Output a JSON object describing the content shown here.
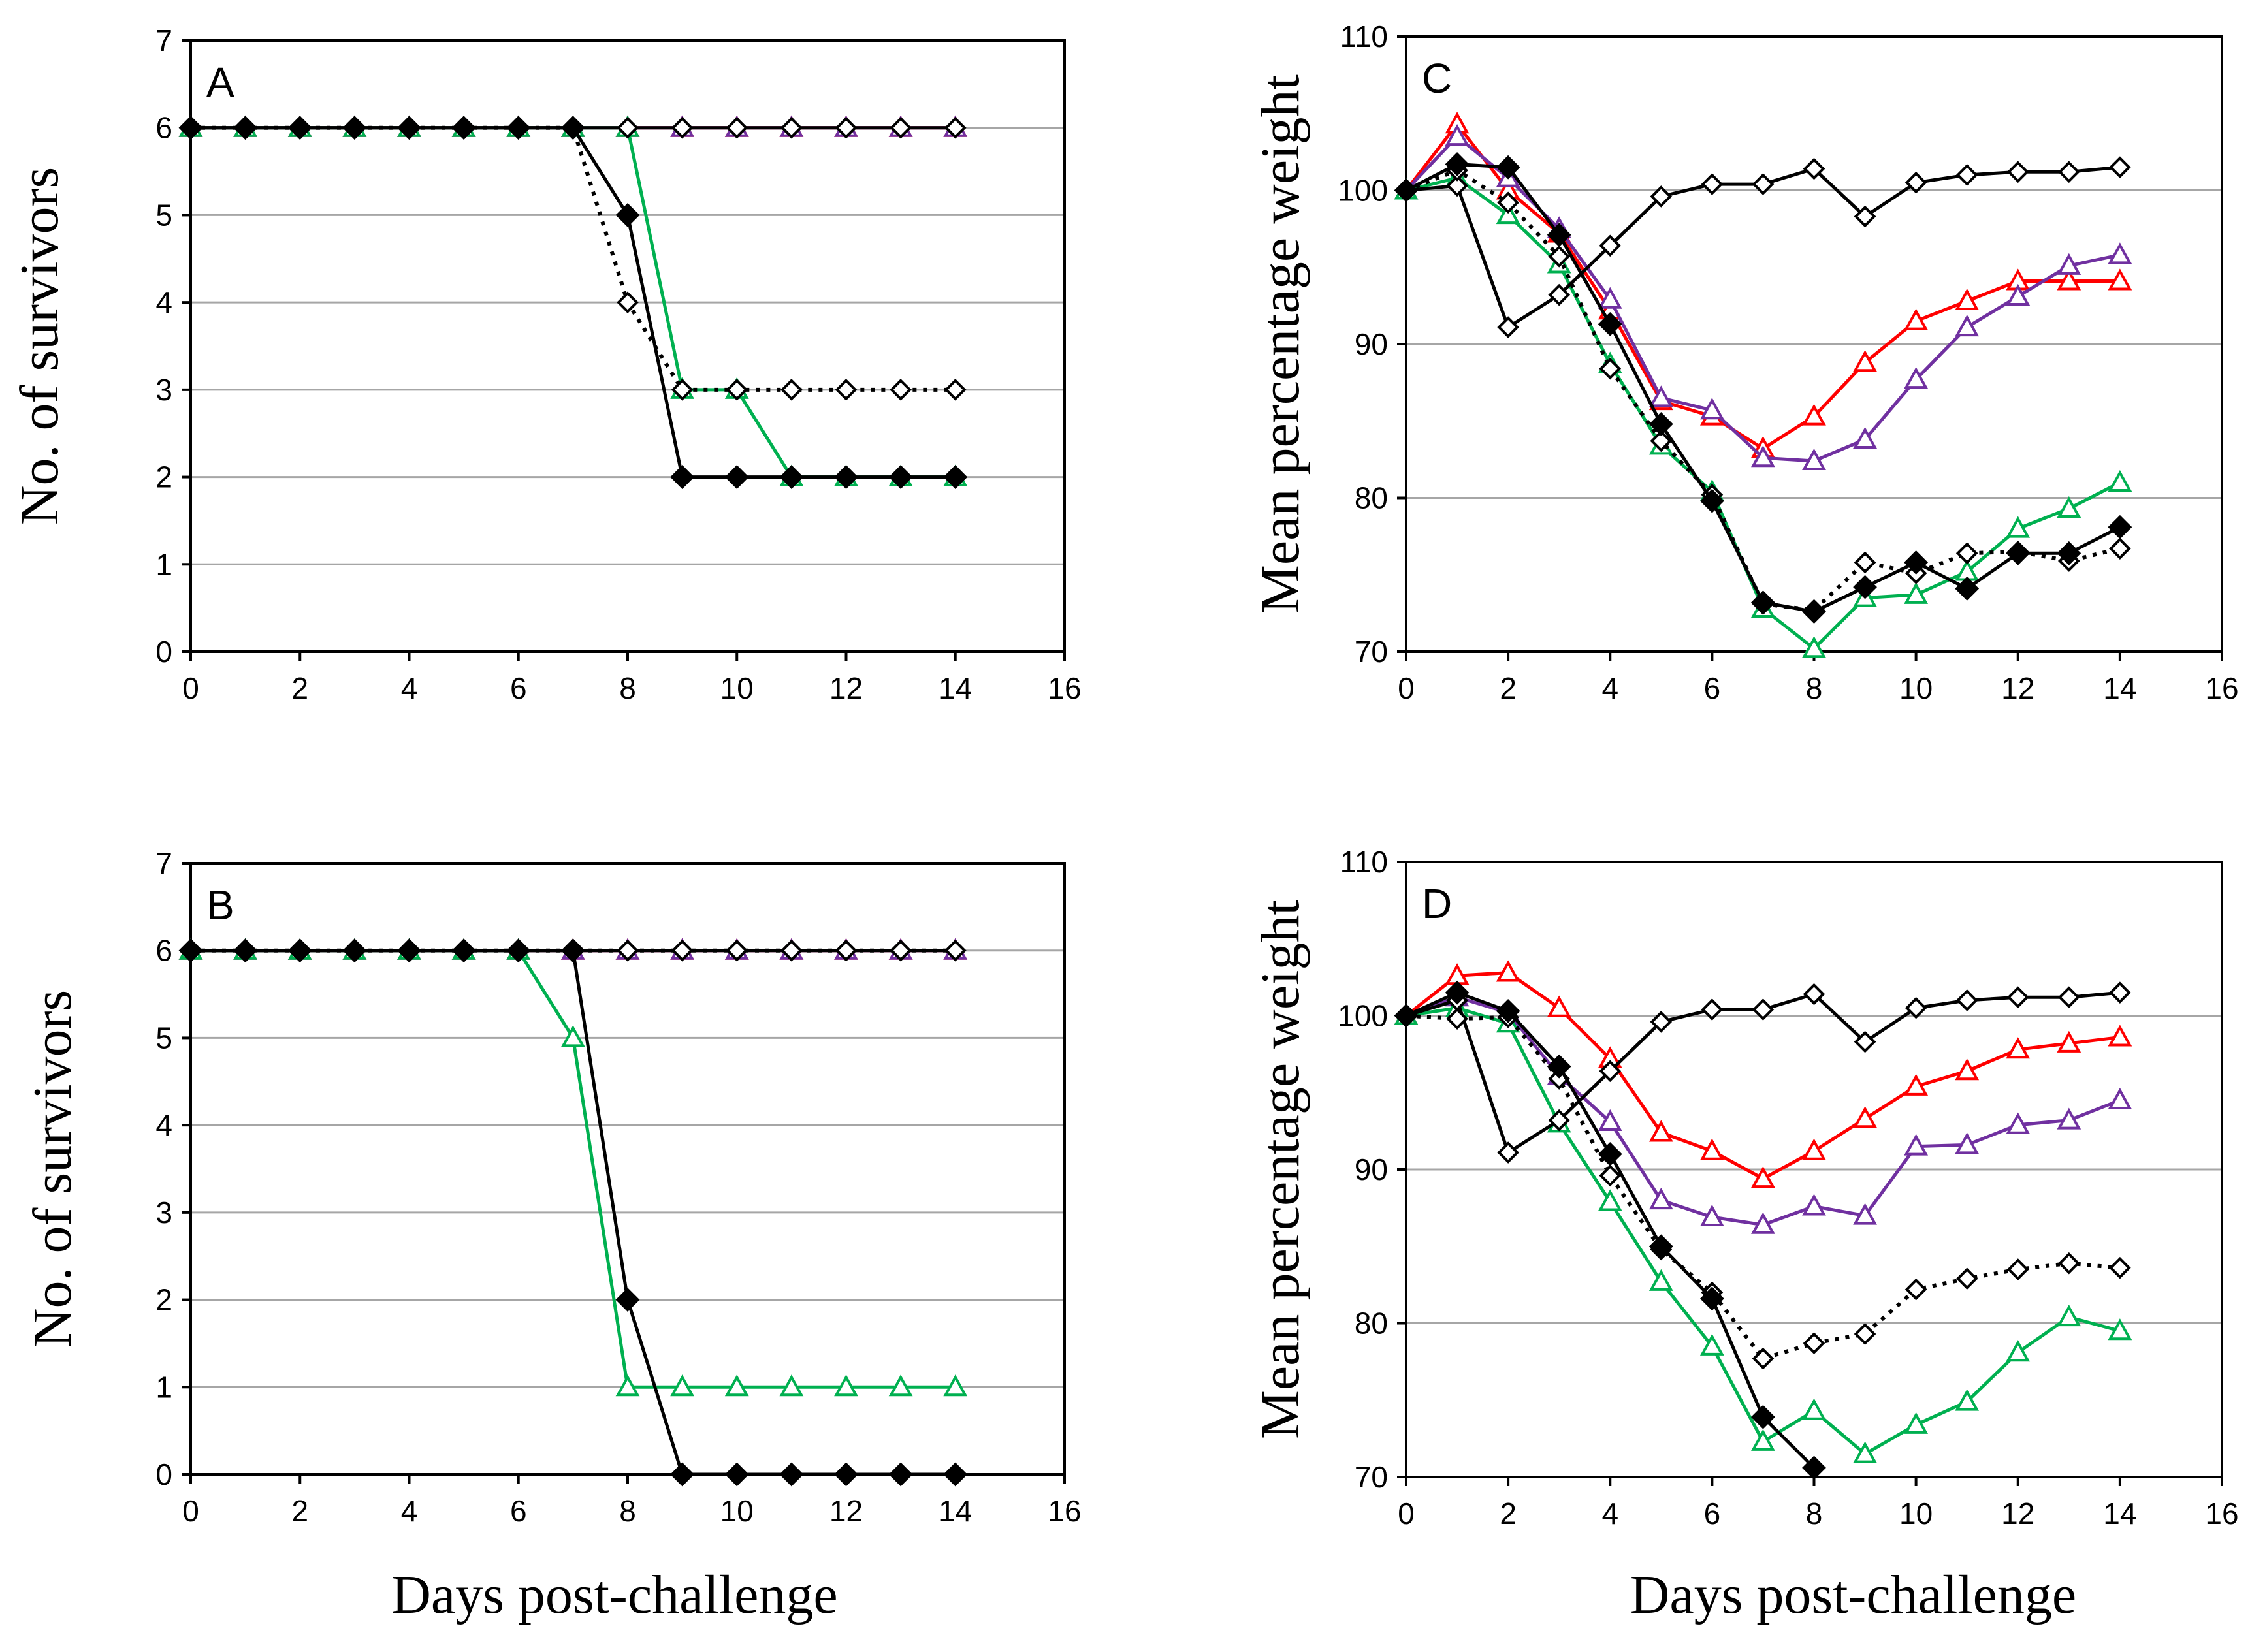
{
  "chart_data": [
    {
      "type": "line",
      "panel": "A",
      "title": "",
      "xlabel": "",
      "ylabel": "No. of survivors",
      "xlim": [
        0,
        16
      ],
      "ylim": [
        0,
        7
      ],
      "xticks": [
        0,
        2,
        4,
        6,
        8,
        10,
        12,
        14,
        16
      ],
      "yticks": [
        0,
        1,
        2,
        3,
        4,
        5,
        6,
        7
      ],
      "grid": true,
      "series": [
        {
          "name": "red triangles",
          "color": "#ff0000",
          "marker": "triangle",
          "dash": "solid",
          "x": [
            0,
            1,
            2,
            3,
            4,
            5,
            6,
            7,
            8,
            9,
            10,
            11,
            12,
            13,
            14
          ],
          "values": [
            6,
            6,
            6,
            6,
            6,
            6,
            6,
            6,
            6,
            6,
            6,
            6,
            6,
            6,
            6
          ]
        },
        {
          "name": "purple triangles",
          "color": "#7030a0",
          "marker": "triangle",
          "dash": "solid",
          "x": [
            0,
            1,
            2,
            3,
            4,
            5,
            6,
            7,
            8,
            9,
            10,
            11,
            12,
            13,
            14
          ],
          "values": [
            6,
            6,
            6,
            6,
            6,
            6,
            6,
            6,
            6,
            6,
            6,
            6,
            6,
            6,
            6
          ]
        },
        {
          "name": "green triangles",
          "color": "#00b050",
          "marker": "triangle",
          "dash": "solid",
          "x": [
            0,
            1,
            2,
            3,
            4,
            5,
            6,
            7,
            8,
            9,
            10,
            11,
            12,
            13,
            14
          ],
          "values": [
            6,
            6,
            6,
            6,
            6,
            6,
            6,
            6,
            6,
            3,
            3,
            2,
            2,
            2,
            2
          ]
        },
        {
          "name": "black open diamonds solid",
          "color": "#000000",
          "marker": "diamond-open",
          "dash": "solid",
          "x": [
            0,
            1,
            2,
            3,
            4,
            5,
            6,
            7,
            8,
            9,
            10,
            11,
            12,
            13,
            14
          ],
          "values": [
            6,
            6,
            6,
            6,
            6,
            6,
            6,
            6,
            6,
            6,
            6,
            6,
            6,
            6,
            6
          ]
        },
        {
          "name": "black open diamonds dotted",
          "color": "#000000",
          "marker": "diamond-open",
          "dash": "dotted",
          "x": [
            0,
            1,
            2,
            3,
            4,
            5,
            6,
            7,
            8,
            9,
            10,
            11,
            12,
            13,
            14
          ],
          "values": [
            6,
            6,
            6,
            6,
            6,
            6,
            6,
            6,
            4,
            3,
            3,
            3,
            3,
            3,
            3
          ]
        },
        {
          "name": "black filled diamonds",
          "color": "#000000",
          "marker": "diamond-filled",
          "dash": "solid",
          "x": [
            0,
            1,
            2,
            3,
            4,
            5,
            6,
            7,
            8,
            9,
            10,
            11,
            12,
            13,
            14
          ],
          "values": [
            6,
            6,
            6,
            6,
            6,
            6,
            6,
            6,
            5,
            2,
            2,
            2,
            2,
            2,
            2
          ]
        }
      ]
    },
    {
      "type": "line",
      "panel": "B",
      "title": "",
      "xlabel": "Days post-challenge",
      "ylabel": "No. of survivors",
      "xlim": [
        0,
        16
      ],
      "ylim": [
        0,
        7
      ],
      "xticks": [
        0,
        2,
        4,
        6,
        8,
        10,
        12,
        14,
        16
      ],
      "yticks": [
        0,
        1,
        2,
        3,
        4,
        5,
        6,
        7
      ],
      "grid": true,
      "series": [
        {
          "name": "red triangles",
          "color": "#ff0000",
          "marker": "triangle",
          "dash": "solid",
          "x": [
            0,
            1,
            2,
            3,
            4,
            5,
            6,
            7,
            8,
            9,
            10,
            11,
            12,
            13,
            14
          ],
          "values": [
            6,
            6,
            6,
            6,
            6,
            6,
            6,
            6,
            6,
            6,
            6,
            6,
            6,
            6,
            6
          ]
        },
        {
          "name": "purple triangles",
          "color": "#7030a0",
          "marker": "triangle",
          "dash": "solid",
          "x": [
            0,
            1,
            2,
            3,
            4,
            5,
            6,
            7,
            8,
            9,
            10,
            11,
            12,
            13,
            14
          ],
          "values": [
            6,
            6,
            6,
            6,
            6,
            6,
            6,
            6,
            6,
            6,
            6,
            6,
            6,
            6,
            6
          ]
        },
        {
          "name": "green triangles",
          "color": "#00b050",
          "marker": "triangle",
          "dash": "solid",
          "x": [
            0,
            1,
            2,
            3,
            4,
            5,
            6,
            7,
            8,
            9,
            10,
            11,
            12,
            13,
            14
          ],
          "values": [
            6,
            6,
            6,
            6,
            6,
            6,
            6,
            5,
            1,
            1,
            1,
            1,
            1,
            1,
            1
          ]
        },
        {
          "name": "black open diamonds solid",
          "color": "#000000",
          "marker": "diamond-open",
          "dash": "solid",
          "x": [
            0,
            1,
            2,
            3,
            4,
            5,
            6,
            7,
            8,
            9,
            10,
            11,
            12,
            13,
            14
          ],
          "values": [
            6,
            6,
            6,
            6,
            6,
            6,
            6,
            6,
            6,
            6,
            6,
            6,
            6,
            6,
            6
          ]
        },
        {
          "name": "black open diamonds dotted",
          "color": "#000000",
          "marker": "diamond-open",
          "dash": "dotted",
          "x": [
            0,
            1,
            2,
            3,
            4,
            5,
            6,
            7,
            8,
            9,
            10,
            11,
            12,
            13,
            14
          ],
          "values": [
            6,
            6,
            6,
            6,
            6,
            6,
            6,
            6,
            6,
            6,
            6,
            6,
            6,
            6,
            6
          ]
        },
        {
          "name": "black filled diamonds",
          "color": "#000000",
          "marker": "diamond-filled",
          "dash": "solid",
          "x": [
            0,
            1,
            2,
            3,
            4,
            5,
            6,
            7,
            8,
            9,
            10,
            11,
            12,
            13,
            14
          ],
          "values": [
            6,
            6,
            6,
            6,
            6,
            6,
            6,
            6,
            2,
            0,
            0,
            0,
            0,
            0,
            0
          ]
        }
      ]
    },
    {
      "type": "line",
      "panel": "C",
      "title": "",
      "xlabel": "",
      "ylabel": "Mean percentage weight",
      "xlim": [
        0,
        16
      ],
      "ylim": [
        70,
        110
      ],
      "xticks": [
        0,
        2,
        4,
        6,
        8,
        10,
        12,
        14,
        16
      ],
      "yticks": [
        70,
        80,
        90,
        100,
        110
      ],
      "grid": true,
      "series": [
        {
          "name": "red triangles",
          "color": "#ff0000",
          "marker": "triangle",
          "dash": "solid",
          "x": [
            0,
            1,
            2,
            3,
            4,
            5,
            6,
            7,
            8,
            9,
            10,
            11,
            12,
            13,
            14
          ],
          "values": [
            100,
            104.3,
            100,
            97.2,
            92.2,
            86.3,
            85.3,
            83.2,
            85.3,
            88.8,
            91.5,
            92.8,
            94.1,
            94.1,
            94.1
          ]
        },
        {
          "name": "purple triangles",
          "color": "#7030a0",
          "marker": "triangle",
          "dash": "solid",
          "x": [
            0,
            1,
            2,
            3,
            4,
            5,
            6,
            7,
            8,
            9,
            10,
            11,
            12,
            13,
            14
          ],
          "values": [
            100,
            103.5,
            100.8,
            97.5,
            92.9,
            86.5,
            85.7,
            82.6,
            82.4,
            83.8,
            87.7,
            91.1,
            93.1,
            95.1,
            95.8
          ]
        },
        {
          "name": "green triangles",
          "color": "#00b050",
          "marker": "triangle",
          "dash": "solid",
          "x": [
            0,
            1,
            2,
            3,
            4,
            5,
            6,
            7,
            8,
            9,
            10,
            11,
            12,
            13,
            14
          ],
          "values": [
            100,
            100.8,
            98.4,
            95.2,
            88.7,
            83.4,
            80.4,
            72.8,
            70.2,
            73.5,
            73.7,
            75.2,
            78,
            79.3,
            81
          ]
        },
        {
          "name": "black open diamonds solid",
          "color": "#000000",
          "marker": "diamond-open",
          "dash": "solid",
          "x": [
            0,
            1,
            2,
            3,
            4,
            5,
            6,
            7,
            8,
            9,
            10,
            11,
            12,
            13,
            14
          ],
          "values": [
            100,
            100.3,
            91.1,
            93.2,
            96.4,
            99.6,
            100.4,
            100.4,
            101.4,
            98.3,
            100.5,
            101,
            101.2,
            101.2,
            101.5
          ]
        },
        {
          "name": "black open diamonds dotted",
          "color": "#000000",
          "marker": "diamond-open",
          "dash": "dotted",
          "x": [
            0,
            1,
            2,
            3,
            4,
            5,
            6,
            7,
            8,
            9,
            10,
            11,
            12,
            13,
            14
          ],
          "values": [
            100,
            101.3,
            99.2,
            95.7,
            88.4,
            83.7,
            80.2,
            73.1,
            72.7,
            75.8,
            75.1,
            76.4,
            76.5,
            75.9,
            76.7
          ]
        },
        {
          "name": "black filled diamonds",
          "color": "#000000",
          "marker": "diamond-filled",
          "dash": "solid",
          "x": [
            0,
            1,
            2,
            3,
            4,
            5,
            6,
            7,
            8,
            9,
            10,
            11,
            12,
            13,
            14
          ],
          "values": [
            100,
            101.7,
            101.5,
            97.1,
            91.3,
            84.8,
            79.8,
            73.2,
            72.6,
            74.2,
            75.8,
            74.1,
            76.4,
            76.4,
            78.1
          ]
        }
      ]
    },
    {
      "type": "line",
      "panel": "D",
      "title": "",
      "xlabel": "Days post-challenge",
      "ylabel": "Mean percentage weight",
      "xlim": [
        0,
        16
      ],
      "ylim": [
        70,
        110
      ],
      "xticks": [
        0,
        2,
        4,
        6,
        8,
        10,
        12,
        14,
        16
      ],
      "yticks": [
        70,
        80,
        90,
        100,
        110
      ],
      "grid": true,
      "series": [
        {
          "name": "red triangles",
          "color": "#ff0000",
          "marker": "triangle",
          "dash": "solid",
          "x": [
            0,
            1,
            2,
            3,
            4,
            5,
            6,
            7,
            8,
            9,
            10,
            11,
            12,
            13,
            14
          ],
          "values": [
            100,
            102.6,
            102.8,
            100.5,
            97.2,
            92.4,
            91.2,
            89.4,
            91.2,
            93.3,
            95.4,
            96.4,
            97.8,
            98.2,
            98.6
          ]
        },
        {
          "name": "purple triangles",
          "color": "#7030a0",
          "marker": "triangle",
          "dash": "solid",
          "x": [
            0,
            1,
            2,
            3,
            4,
            5,
            6,
            7,
            8,
            9,
            10,
            11,
            12,
            13,
            14
          ],
          "values": [
            100,
            101.2,
            100.2,
            96.1,
            93.1,
            88,
            86.9,
            86.4,
            87.6,
            87,
            91.5,
            91.6,
            92.9,
            93.2,
            94.5
          ]
        },
        {
          "name": "green triangles",
          "color": "#00b050",
          "marker": "triangle",
          "dash": "solid",
          "x": [
            0,
            1,
            2,
            3,
            4,
            5,
            6,
            7,
            8,
            9,
            10,
            11,
            12,
            13,
            14
          ],
          "values": [
            100,
            100.5,
            99.5,
            93,
            87.9,
            82.7,
            78.5,
            72.3,
            74.3,
            71.5,
            73.4,
            74.9,
            78.1,
            80.4,
            79.5
          ]
        },
        {
          "name": "black open diamonds solid",
          "color": "#000000",
          "marker": "diamond-open",
          "dash": "solid",
          "x": [
            0,
            1,
            2,
            3,
            4,
            5,
            6,
            7,
            8,
            9,
            10,
            11,
            12,
            13,
            14
          ],
          "values": [
            100,
            101,
            91.1,
            93.2,
            96.4,
            99.6,
            100.4,
            100.4,
            101.4,
            98.3,
            100.5,
            101,
            101.2,
            101.2,
            101.5
          ]
        },
        {
          "name": "black open diamonds dotted",
          "color": "#000000",
          "marker": "diamond-open",
          "dash": "dotted",
          "x": [
            0,
            1,
            2,
            3,
            4,
            5,
            6,
            7,
            8,
            9,
            10,
            11,
            12,
            13,
            14
          ],
          "values": [
            100,
            99.8,
            99.9,
            95.9,
            89.6,
            84.8,
            82,
            77.7,
            78.7,
            79.3,
            82.2,
            82.9,
            83.5,
            83.9,
            83.6
          ]
        },
        {
          "name": "black filled diamonds",
          "color": "#000000",
          "marker": "diamond-filled",
          "dash": "solid",
          "x": [
            0,
            1,
            2,
            3,
            4,
            5,
            6,
            7,
            8
          ],
          "values": [
            100,
            101.5,
            100.3,
            96.7,
            91,
            85,
            81.6,
            73.9,
            70.6
          ]
        }
      ]
    }
  ]
}
